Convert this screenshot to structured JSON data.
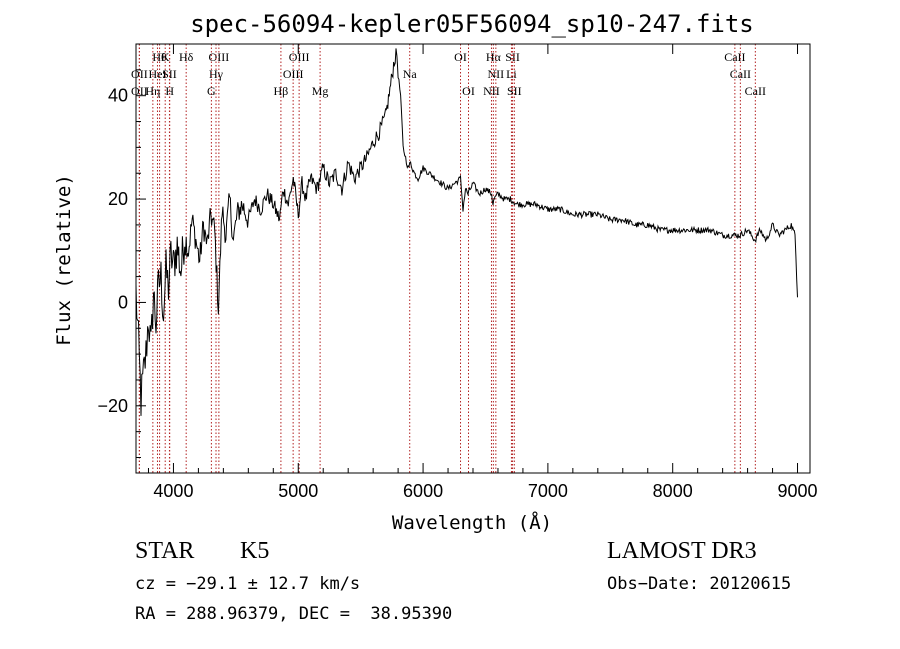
{
  "chart_data": {
    "type": "line",
    "title": "spec-56094-kepler05F56094_sp10-247.fits",
    "xlabel": "Wavelength (Å)",
    "ylabel": "Flux (relative)",
    "xlim": [
      3700,
      9100
    ],
    "ylim": [
      -33,
      50
    ],
    "x_ticks": [
      {
        "value": 4000,
        "label": "4000"
      },
      {
        "value": 5000,
        "label": "5000"
      },
      {
        "value": 6000,
        "label": "6000"
      },
      {
        "value": 7000,
        "label": "7000"
      },
      {
        "value": 8000,
        "label": "8000"
      },
      {
        "value": 9000,
        "label": "9000"
      }
    ],
    "y_ticks": [
      {
        "value": -20,
        "label": "−20"
      },
      {
        "value": 0,
        "label": "0"
      },
      {
        "value": 20,
        "label": "20"
      },
      {
        "value": 40,
        "label": "40"
      }
    ],
    "series": [
      {
        "name": "spectrum",
        "color": "#000000",
        "x": [
          3700,
          3720,
          3740,
          3760,
          3780,
          3800,
          3820,
          3840,
          3860,
          3880,
          3900,
          3920,
          3940,
          3960,
          3980,
          4000,
          4030,
          4060,
          4090,
          4120,
          4150,
          4180,
          4210,
          4240,
          4270,
          4300,
          4330,
          4360,
          4390,
          4420,
          4450,
          4480,
          4510,
          4550,
          4600,
          4650,
          4700,
          4750,
          4800,
          4850,
          4880,
          4920,
          4960,
          5000,
          5030,
          5060,
          5100,
          5150,
          5200,
          5250,
          5300,
          5350,
          5400,
          5450,
          5500,
          5550,
          5600,
          5650,
          5700,
          5740,
          5770,
          5790,
          5800,
          5820,
          5840,
          5860,
          5880,
          5900,
          5930,
          5960,
          6000,
          6050,
          6100,
          6150,
          6200,
          6250,
          6300,
          6320,
          6340,
          6360,
          6400,
          6450,
          6500,
          6550,
          6560,
          6570,
          6600,
          6650,
          6700,
          6750,
          6800,
          6900,
          7000,
          7100,
          7200,
          7300,
          7400,
          7500,
          7600,
          7700,
          7800,
          7900,
          8000,
          8100,
          8200,
          8300,
          8400,
          8500,
          8540,
          8600,
          8660,
          8700,
          8750,
          8800,
          8850,
          8900,
          8950,
          8980,
          9000
        ],
        "values": [
          2,
          -8,
          -19,
          -14,
          -10,
          -3,
          -9,
          2,
          -4,
          3,
          5,
          -2,
          6,
          3,
          9,
          7,
          11,
          6,
          13,
          10,
          16,
          12,
          8,
          15,
          11,
          17,
          14,
          -1,
          18,
          13,
          20,
          12,
          17,
          19,
          16,
          20,
          18,
          21,
          19,
          16,
          22,
          19,
          24,
          17,
          23,
          20,
          24,
          22,
          26,
          23,
          25,
          22,
          27,
          24,
          26,
          28,
          31,
          33,
          36,
          42,
          47,
          48,
          44,
          40,
          30,
          28,
          26,
          27,
          25,
          24,
          26,
          25,
          24,
          23,
          22,
          23,
          24,
          18,
          22,
          21,
          23,
          21,
          22,
          21,
          19,
          20,
          21,
          20,
          20,
          19,
          19,
          19,
          18,
          18,
          17,
          17,
          17,
          16,
          16,
          15,
          15,
          14,
          14,
          14,
          14,
          14,
          13,
          13,
          13,
          14,
          12,
          14,
          12,
          15,
          13,
          14,
          15,
          13,
          1
        ]
      }
    ],
    "line_groups": [
      {
        "tier": 1,
        "items": [
          {
            "x": 3889,
            "label": "Hθ"
          },
          {
            "x": 3934,
            "label": "K"
          },
          {
            "x": 4102,
            "label": "Hδ"
          },
          {
            "x": 4364,
            "label": "OIII"
          },
          {
            "x": 5007,
            "label": "OIII"
          },
          {
            "x": 6300,
            "label": "OI"
          },
          {
            "x": 6563,
            "label": "Hα"
          },
          {
            "x": 6717,
            "label": "SII"
          },
          {
            "x": 8498,
            "label": "CaII"
          }
        ]
      },
      {
        "tier": 2,
        "items": [
          {
            "x": 3727,
            "label": "OII"
          },
          {
            "x": 3872,
            "label": "HeI"
          },
          {
            "x": 3968,
            "label": "SII"
          },
          {
            "x": 4341,
            "label": "Hγ"
          },
          {
            "x": 4959,
            "label": "OIII"
          },
          {
            "x": 5893,
            "label": "Na"
          },
          {
            "x": 6583,
            "label": "NII"
          },
          {
            "x": 6708,
            "label": "Li"
          },
          {
            "x": 8542,
            "label": "CaII"
          }
        ]
      },
      {
        "tier": 3,
        "items": [
          {
            "x": 3727,
            "label": "OII"
          },
          {
            "x": 3835,
            "label": "Hη"
          },
          {
            "x": 3970,
            "label": "H"
          },
          {
            "x": 4304,
            "label": "G"
          },
          {
            "x": 4861,
            "label": "Hβ"
          },
          {
            "x": 5175,
            "label": "Mg"
          },
          {
            "x": 6364,
            "label": "OI"
          },
          {
            "x": 6548,
            "label": "NII"
          },
          {
            "x": 6731,
            "label": "SII"
          },
          {
            "x": 8662,
            "label": "CaII"
          }
        ]
      }
    ],
    "line_color": "#b22222"
  },
  "info": {
    "class": "STAR",
    "subclass": "K5",
    "cz": "cz = −29.1 ± 12.7 km/s",
    "radec": "RA = 288.96379, DEC =  38.95390",
    "survey": "LAMOST DR3",
    "obs_date": "Obs−Date: 20120615"
  }
}
